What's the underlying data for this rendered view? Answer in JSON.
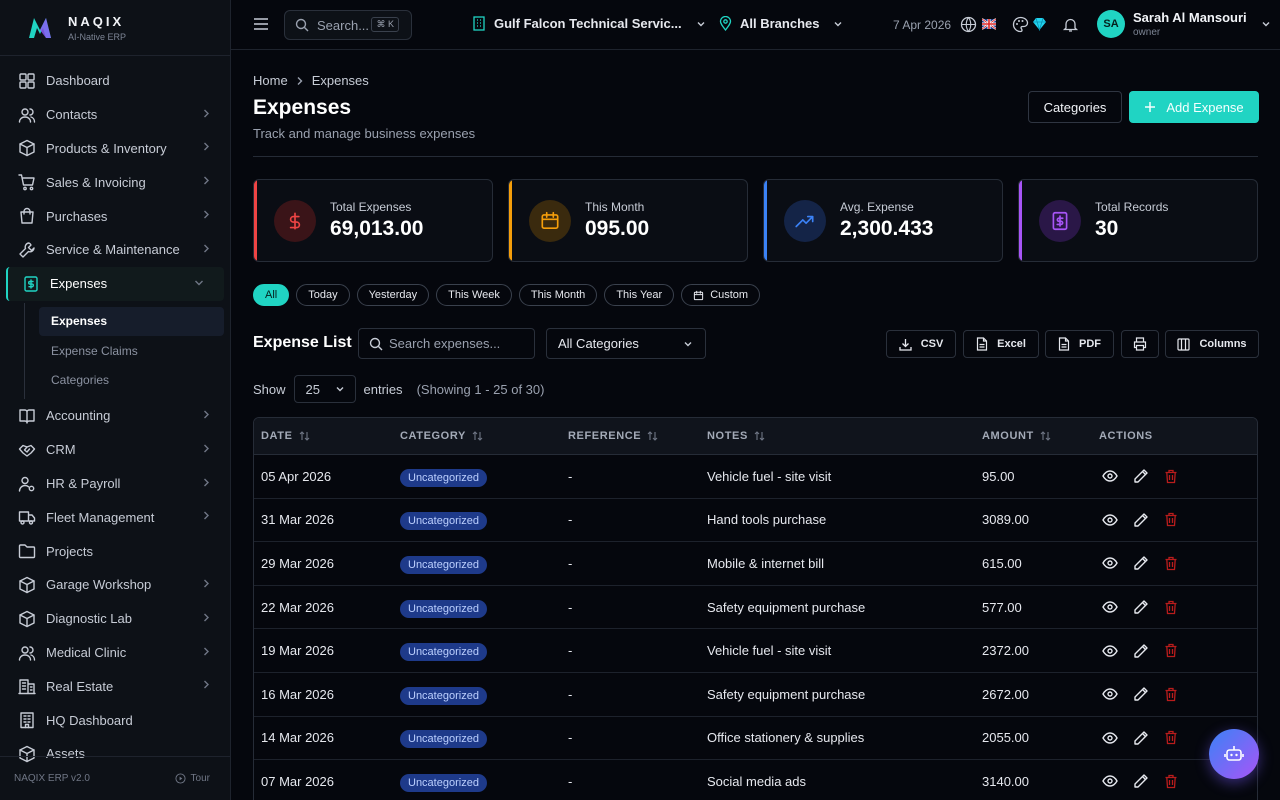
{
  "brand": {
    "name": "NAQIX",
    "tagline": "AI-Native ERP"
  },
  "sidebar": {
    "items": [
      {
        "label": "Dashboard",
        "icon": "dashboard-icon",
        "chevron": false
      },
      {
        "label": "Contacts",
        "icon": "contacts-icon",
        "chevron": true
      },
      {
        "label": "Products & Inventory",
        "icon": "box-icon",
        "chevron": true
      },
      {
        "label": "Sales & Invoicing",
        "icon": "cart-icon",
        "chevron": true
      },
      {
        "label": "Purchases",
        "icon": "bag-icon",
        "chevron": true
      },
      {
        "label": "Service & Maintenance",
        "icon": "wrench-icon",
        "chevron": true
      },
      {
        "label": "Expenses",
        "icon": "receipt-icon",
        "chevron": true,
        "active": true
      }
    ],
    "sub_items": [
      {
        "label": "Expenses",
        "active": true
      },
      {
        "label": "Expense Claims"
      },
      {
        "label": "Categories"
      }
    ],
    "items_after": [
      {
        "label": "Accounting",
        "icon": "book-icon",
        "chevron": true
      },
      {
        "label": "CRM",
        "icon": "handshake-icon",
        "chevron": true
      },
      {
        "label": "HR & Payroll",
        "icon": "user-gear-icon",
        "chevron": true
      },
      {
        "label": "Fleet Management",
        "icon": "truck-icon",
        "chevron": true
      },
      {
        "label": "Projects",
        "icon": "folder-icon",
        "chevron": false
      },
      {
        "label": "Garage Workshop",
        "icon": "box-icon",
        "chevron": true
      },
      {
        "label": "Diagnostic Lab",
        "icon": "box-icon",
        "chevron": true
      },
      {
        "label": "Medical Clinic",
        "icon": "users-icon",
        "chevron": true
      },
      {
        "label": "Real Estate",
        "icon": "building-icon",
        "chevron": true
      },
      {
        "label": "HQ Dashboard",
        "icon": "office-icon",
        "chevron": false
      },
      {
        "label": "Assets",
        "icon": "box-icon",
        "chevron": false
      }
    ],
    "footer_version": "NAQIX ERP v2.0",
    "footer_tour": "Tour"
  },
  "topbar": {
    "search_placeholder": "Search...",
    "search_shortcut": "⌘ K",
    "company": "Gulf Falcon Technical Servic...",
    "branch": "All Branches",
    "date": "7 Apr 2026",
    "user_initials": "SA",
    "user_name": "Sarah Al Mansouri",
    "user_role": "owner"
  },
  "page": {
    "breadcrumb_home": "Home",
    "breadcrumb_current": "Expenses",
    "title": "Expenses",
    "subtitle": "Track and manage business expenses",
    "categories_button": "Categories",
    "add_button": "Add Expense"
  },
  "stats": [
    {
      "label": "Total Expenses",
      "value": "69,013.00",
      "accent": "#ef4444",
      "bg": "#3a1418",
      "icon": "dollar-icon"
    },
    {
      "label": "This Month",
      "value": "095.00",
      "accent": "#f59e0b",
      "bg": "#3a2a0e",
      "icon": "calendar-icon"
    },
    {
      "label": "Avg. Expense",
      "value": "2,300.433",
      "accent": "#3b82f6",
      "bg": "#142447",
      "icon": "trend-up-icon"
    },
    {
      "label": "Total Records",
      "value": "30",
      "accent": "#a855f7",
      "bg": "#2a1747",
      "icon": "receipt-icon"
    }
  ],
  "filters": [
    "All",
    "Today",
    "Yesterday",
    "This Week",
    "This Month",
    "This Year",
    "Custom"
  ],
  "list": {
    "title": "Expense List",
    "search_placeholder": "Search expenses...",
    "category_filter": "All Categories",
    "export_csv": "CSV",
    "export_excel": "Excel",
    "export_pdf": "PDF",
    "columns_button": "Columns",
    "show_label": "Show",
    "page_size": "25",
    "entries_label": "entries",
    "showing": "(Showing 1 - 25 of 30)",
    "columns": [
      "Date",
      "Category",
      "Reference",
      "Notes",
      "Amount",
      "ACTIONS"
    ],
    "rows": [
      {
        "date": "05 Apr 2026",
        "category": "Uncategorized",
        "reference": "-",
        "notes": "Vehicle fuel - site visit",
        "amount": "95.00"
      },
      {
        "date": "31 Mar 2026",
        "category": "Uncategorized",
        "reference": "-",
        "notes": "Hand tools purchase",
        "amount": "3089.00"
      },
      {
        "date": "29 Mar 2026",
        "category": "Uncategorized",
        "reference": "-",
        "notes": "Mobile & internet bill",
        "amount": "615.00"
      },
      {
        "date": "22 Mar 2026",
        "category": "Uncategorized",
        "reference": "-",
        "notes": "Safety equipment purchase",
        "amount": "577.00"
      },
      {
        "date": "19 Mar 2026",
        "category": "Uncategorized",
        "reference": "-",
        "notes": "Vehicle fuel - site visit",
        "amount": "2372.00"
      },
      {
        "date": "16 Mar 2026",
        "category": "Uncategorized",
        "reference": "-",
        "notes": "Safety equipment purchase",
        "amount": "2672.00"
      },
      {
        "date": "14 Mar 2026",
        "category": "Uncategorized",
        "reference": "-",
        "notes": "Office stationery & supplies",
        "amount": "2055.00"
      },
      {
        "date": "07 Mar 2026",
        "category": "Uncategorized",
        "reference": "-",
        "notes": "Social media ads",
        "amount": "3140.00"
      }
    ]
  },
  "colors": {
    "accent": "#20d4c3",
    "background": "#05070d",
    "sidebar": "#0d1117"
  }
}
